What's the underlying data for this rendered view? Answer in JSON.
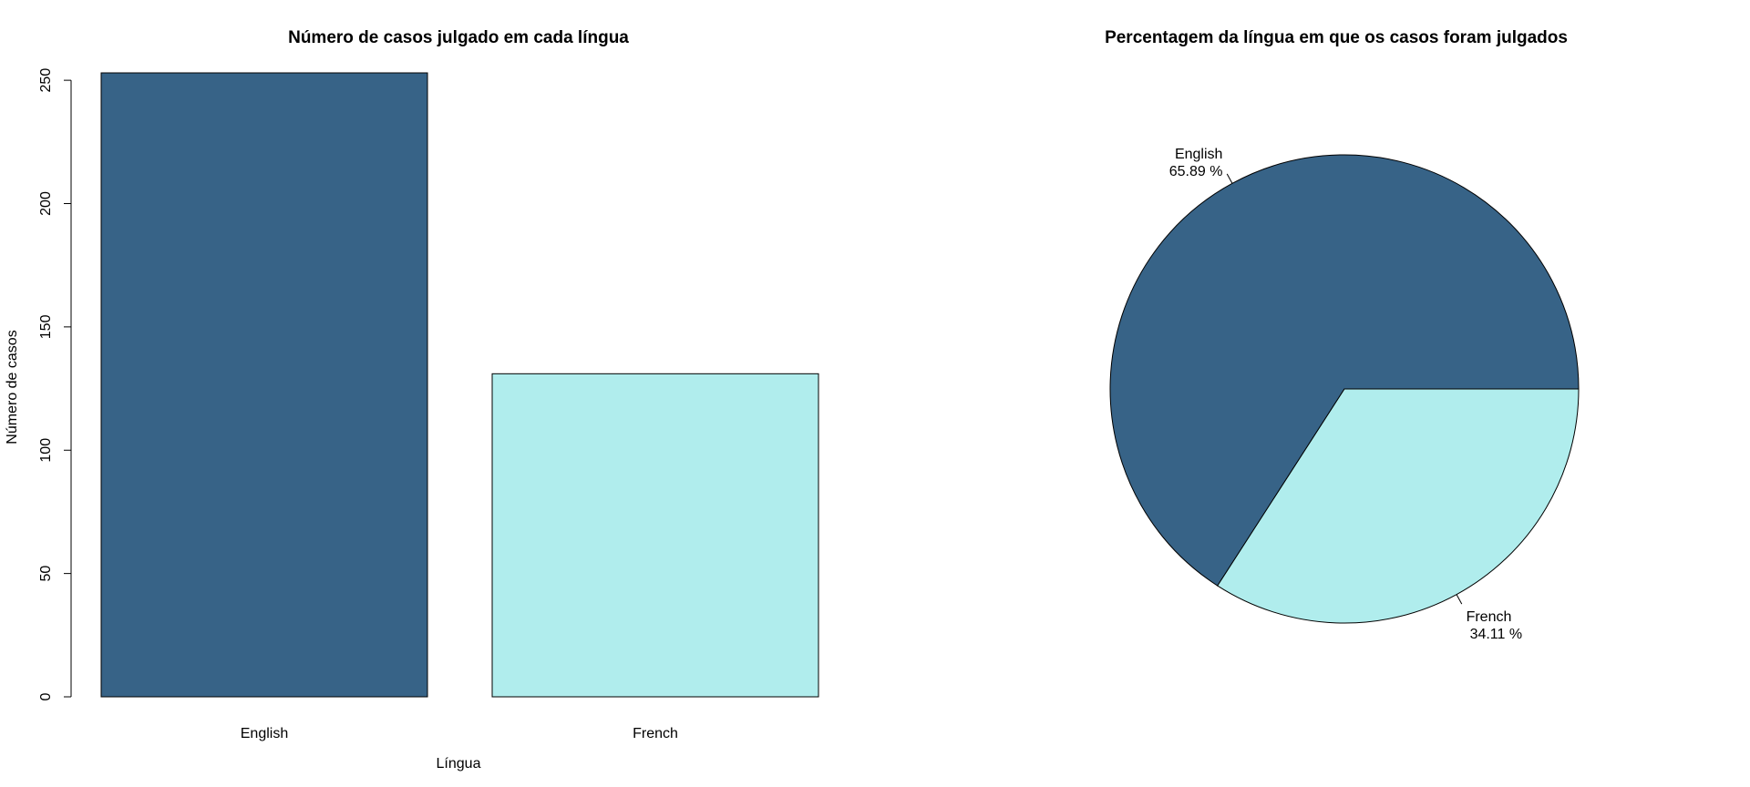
{
  "chart_data": [
    {
      "type": "bar",
      "title": "Número de casos julgado em cada língua",
      "xlabel": "Língua",
      "ylabel": "Número de casos",
      "categories": [
        "English",
        "French"
      ],
      "values": [
        253,
        131
      ],
      "colors": [
        "#376387",
        "#b0eded"
      ],
      "ylim": [
        0,
        253
      ],
      "yticks": [
        0,
        50,
        100,
        150,
        200,
        250
      ],
      "grid": false
    },
    {
      "type": "pie",
      "title": "Percentagem da língua em que os casos foram julgados",
      "labels": [
        "English",
        "French"
      ],
      "values": [
        65.89,
        34.11
      ],
      "value_labels": [
        "65.89 %",
        "34.11 %"
      ],
      "colors": [
        "#376387",
        "#b0eded"
      ]
    }
  ]
}
